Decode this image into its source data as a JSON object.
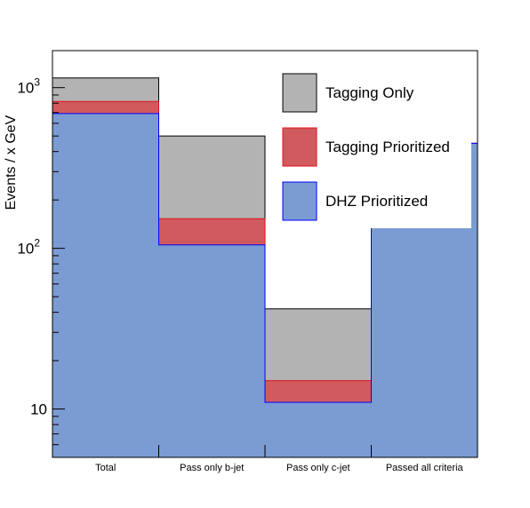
{
  "chart_data": {
    "type": "bar",
    "stacked": true,
    "ylabel": "Events / x GeV",
    "xlabel": "",
    "yscale": "log",
    "ylim": [
      5,
      1700
    ],
    "y_ticks": [
      {
        "value": 10,
        "label": "10"
      },
      {
        "value": 100,
        "label": "10",
        "sup": "2"
      },
      {
        "value": 1000,
        "label": "10",
        "sup": "3"
      }
    ],
    "categories": [
      "Total",
      "Pass only b-jet",
      "Pass only c-jet",
      "Passed all criteria"
    ],
    "series": [
      {
        "name": "DHZ Prioritized",
        "color": "#7b9bd3",
        "edge": "#0000ff",
        "values": [
          690,
          105,
          11,
          450
        ]
      },
      {
        "name": "Tagging Prioritized",
        "color": "#d05a5e",
        "edge": "#e0111b",
        "values": [
          820,
          153,
          15,
          450
        ]
      },
      {
        "name": "Tagging Only",
        "color": "#b3b3b3",
        "edge": "#000000",
        "values": [
          1150,
          500,
          42,
          450
        ]
      }
    ],
    "legend_order": [
      "Tagging Only",
      "Tagging Prioritized",
      "DHZ Prioritized"
    ],
    "legend_position": "top-right",
    "grid": false
  }
}
